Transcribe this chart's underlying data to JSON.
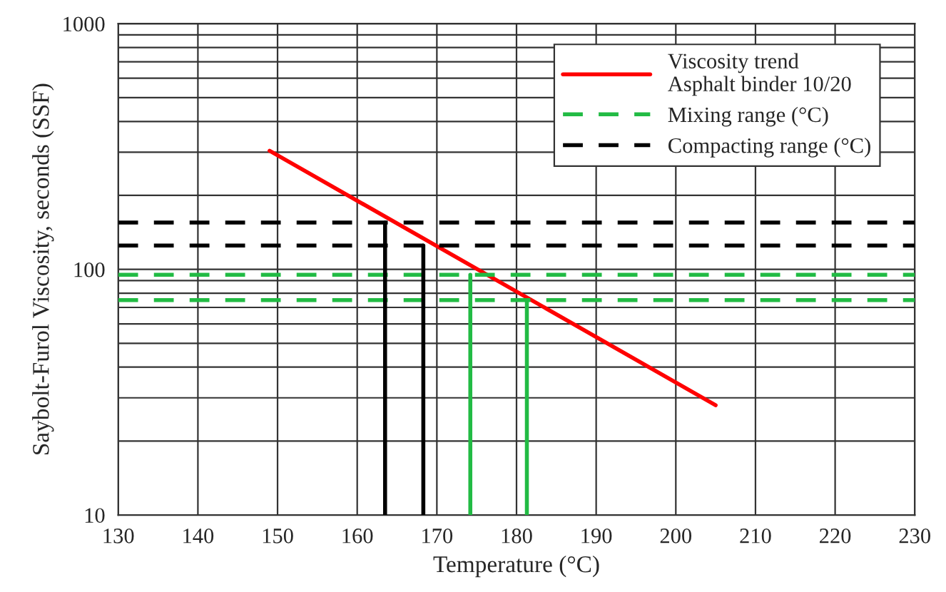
{
  "chart_data": {
    "type": "line",
    "xlabel": "Temperature (°C)",
    "ylabel": "Saybolt-Furol Viscosity, seconds (SSF)",
    "xlim": [
      130,
      230
    ],
    "xticks": [
      130,
      140,
      150,
      160,
      170,
      180,
      190,
      200,
      210,
      220,
      230
    ],
    "ylim": [
      10,
      1000
    ],
    "yticks": [
      10,
      100,
      1000
    ],
    "log": "y",
    "grid": true,
    "legend": "top right",
    "series": [
      {
        "name": "Viscosity trend\nAsphalt binder 10/20",
        "color": "#ff0000",
        "line_style": "solid",
        "x": [
          149,
          205
        ],
        "values": [
          304,
          28
        ]
      },
      {
        "name": "Mixing range (°C)",
        "color": "#22bb44",
        "line_style": "dashed",
        "x": [
          130,
          230
        ],
        "values": [
          95,
          95
        ]
      },
      {
        "color": "#22bb44",
        "line_style": "dashed",
        "x": [
          130,
          230
        ],
        "values": [
          75,
          75
        ]
      },
      {
        "name": "Compacting range (°C)",
        "color": "#000000",
        "line_style": "dashed",
        "x": [
          130,
          230
        ],
        "values": [
          155,
          155
        ]
      },
      {
        "color": "#000000",
        "line_style": "dashed",
        "x": [
          130,
          230
        ],
        "values": [
          125,
          125
        ]
      },
      {
        "color": "#000000",
        "line_style": "solid",
        "x": [
          163.5,
          163.5
        ],
        "values": [
          10,
          155
        ]
      },
      {
        "color": "#000000",
        "line_style": "solid",
        "x": [
          168.3,
          168.3
        ],
        "values": [
          10,
          125
        ]
      },
      {
        "color": "#22bb44",
        "line_style": "solid",
        "x": [
          174.2,
          174.2
        ],
        "values": [
          10,
          95
        ]
      },
      {
        "color": "#22bb44",
        "line_style": "solid",
        "x": [
          181.3,
          181.3
        ],
        "values": [
          10,
          75
        ]
      }
    ]
  }
}
